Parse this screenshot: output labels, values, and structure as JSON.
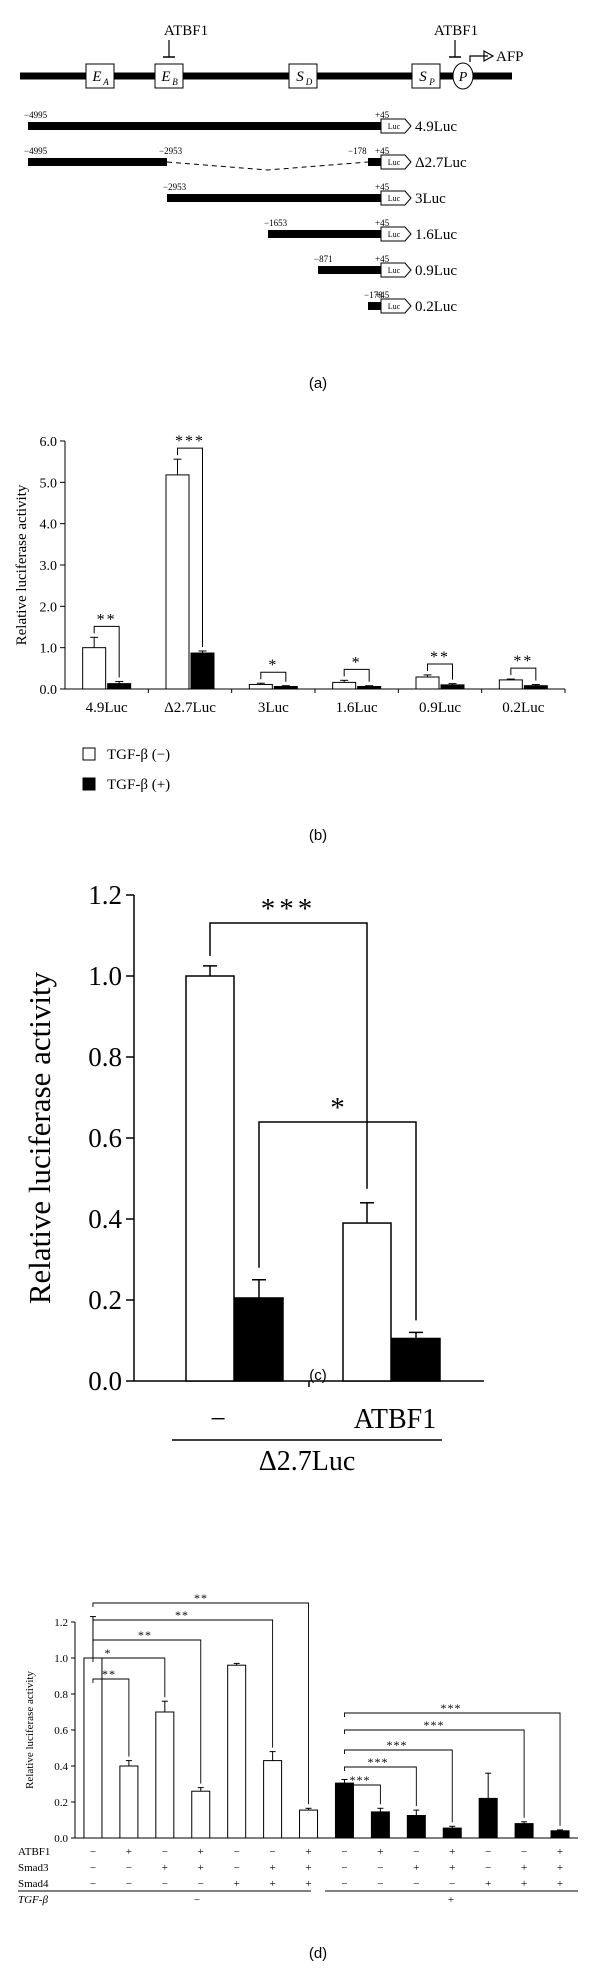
{
  "chart_data": [
    {
      "type": "diagram",
      "panel": "(a)",
      "element_labels": [
        "E_A",
        "E_B",
        "S_D",
        "S_P",
        "P"
      ],
      "atbf1_label": "ATBF1",
      "afp_label": "AFP",
      "luc_label": "Luc",
      "constructs": [
        {
          "name": "4.9Luc",
          "start": "−4995",
          "end": "+45",
          "deletion": null
        },
        {
          "name": "Δ2.7Luc",
          "start": "−4995",
          "end": "+45",
          "deletion": [
            "−2953",
            "−178"
          ]
        },
        {
          "name": "3Luc",
          "start": "−2953",
          "end": "+45",
          "deletion": null
        },
        {
          "name": "1.6Luc",
          "start": "−1653",
          "end": "+45",
          "deletion": null
        },
        {
          "name": "0.9Luc",
          "start": "−871",
          "end": "+45",
          "deletion": null
        },
        {
          "name": "0.2Luc",
          "start": "−178",
          "end": "+45",
          "deletion": null
        }
      ]
    },
    {
      "type": "bar",
      "panel": "(b)",
      "ylabel": "Relative luciferase activity",
      "ylim": [
        0,
        6
      ],
      "yticks": [
        "0.0",
        "1.0",
        "2.0",
        "3.0",
        "4.0",
        "5.0",
        "6.0"
      ],
      "categories": [
        "4.9Luc",
        "Δ2.7Luc",
        "3Luc",
        "1.6Luc",
        "0.9Luc",
        "0.2Luc"
      ],
      "series": [
        {
          "name": "TGF-β (−)",
          "fill": "#ffffff",
          "values": [
            1.0,
            5.18,
            0.11,
            0.16,
            0.29,
            0.22
          ],
          "errors": [
            0.25,
            0.38,
            0.03,
            0.05,
            0.05,
            0.02
          ]
        },
        {
          "name": "TGF-β (+)",
          "fill": "#000000",
          "values": [
            0.13,
            0.87,
            0.06,
            0.06,
            0.1,
            0.08
          ],
          "errors": [
            0.05,
            0.05,
            0.02,
            0.02,
            0.03,
            0.03
          ]
        }
      ],
      "significance": [
        "**",
        "***",
        "*",
        "*",
        "**",
        "**"
      ]
    },
    {
      "type": "bar",
      "panel": "(c)",
      "ylabel": "Relative luciferase activity",
      "ylim": [
        0,
        1.2
      ],
      "yticks": [
        "0.0",
        "0.2",
        "0.4",
        "0.6",
        "0.8",
        "1.0",
        "1.2"
      ],
      "groups": [
        "−",
        "ATBF1"
      ],
      "group_caption": "Δ2.7Luc",
      "series": [
        {
          "name": "TGF-β (−)",
          "fill": "#ffffff",
          "values": [
            1.0,
            0.39
          ],
          "errors": [
            0.025,
            0.05
          ]
        },
        {
          "name": "TGF-β (+)",
          "fill": "#000000",
          "values": [
            0.205,
            0.105
          ],
          "errors": [
            0.045,
            0.015
          ]
        }
      ],
      "significance": [
        {
          "label": "***",
          "between": [
            "− / TGF-β (−)",
            "ATBF1 / TGF-β (−)"
          ]
        },
        {
          "label": "*",
          "between": [
            "− / TGF-β (+)",
            "ATBF1 / TGF-β (+)"
          ]
        }
      ]
    },
    {
      "type": "bar",
      "panel": "(d)",
      "ylabel": "Relative luciferase activity",
      "ylim": [
        0,
        1.2
      ],
      "yticks": [
        "0.0",
        "0.2",
        "0.4",
        "0.6",
        "0.8",
        "1.0",
        "1.2"
      ],
      "values": [
        1.0,
        0.4,
        0.7,
        0.26,
        0.96,
        0.43,
        0.155,
        0.305,
        0.145,
        0.125,
        0.055,
        0.22,
        0.08,
        0.04
      ],
      "errors": [
        0.23,
        0.03,
        0.06,
        0.02,
        0.01,
        0.05,
        0.01,
        0.02,
        0.02,
        0.03,
        0.01,
        0.14,
        0.01,
        0.005
      ],
      "rows": [
        {
          "label": "ATBF1",
          "marks": [
            "−",
            "+",
            "−",
            "+",
            "−",
            "−",
            "+",
            "−",
            "+",
            "−",
            "+",
            "−",
            "−",
            "+"
          ]
        },
        {
          "label": "Smad3",
          "marks": [
            "−",
            "−",
            "+",
            "+",
            "−",
            "+",
            "+",
            "−",
            "−",
            "+",
            "+",
            "−",
            "+",
            "+"
          ]
        },
        {
          "label": "Smad4",
          "marks": [
            "−",
            "−",
            "−",
            "−",
            "+",
            "+",
            "+",
            "−",
            "−",
            "−",
            "−",
            "+",
            "+",
            "+"
          ]
        }
      ],
      "tgf_label": "TGF-β",
      "tgf_groups": [
        "−",
        "+"
      ],
      "left_brackets": [
        {
          "label": "**",
          "to_bar": 2
        },
        {
          "label": "*",
          "to_bar": 3
        },
        {
          "label": "**",
          "to_bar": 4
        },
        {
          "label": "**",
          "to_bar": 6
        },
        {
          "label": "**",
          "to_bar": 7
        }
      ],
      "right_brackets": [
        {
          "label": "***",
          "to_bar": 9
        },
        {
          "label": "***",
          "to_bar": 10
        },
        {
          "label": "***",
          "to_bar": 11
        },
        {
          "label": "***",
          "to_bar": 13
        },
        {
          "label": "***",
          "to_bar": 14
        }
      ]
    }
  ],
  "legend": {
    "neg": "TGF-β (−)",
    "pos": "TGF-β (+)"
  },
  "captions": {
    "a": "(a)",
    "b": "(b)",
    "c": "(c)",
    "d": "(d)"
  }
}
